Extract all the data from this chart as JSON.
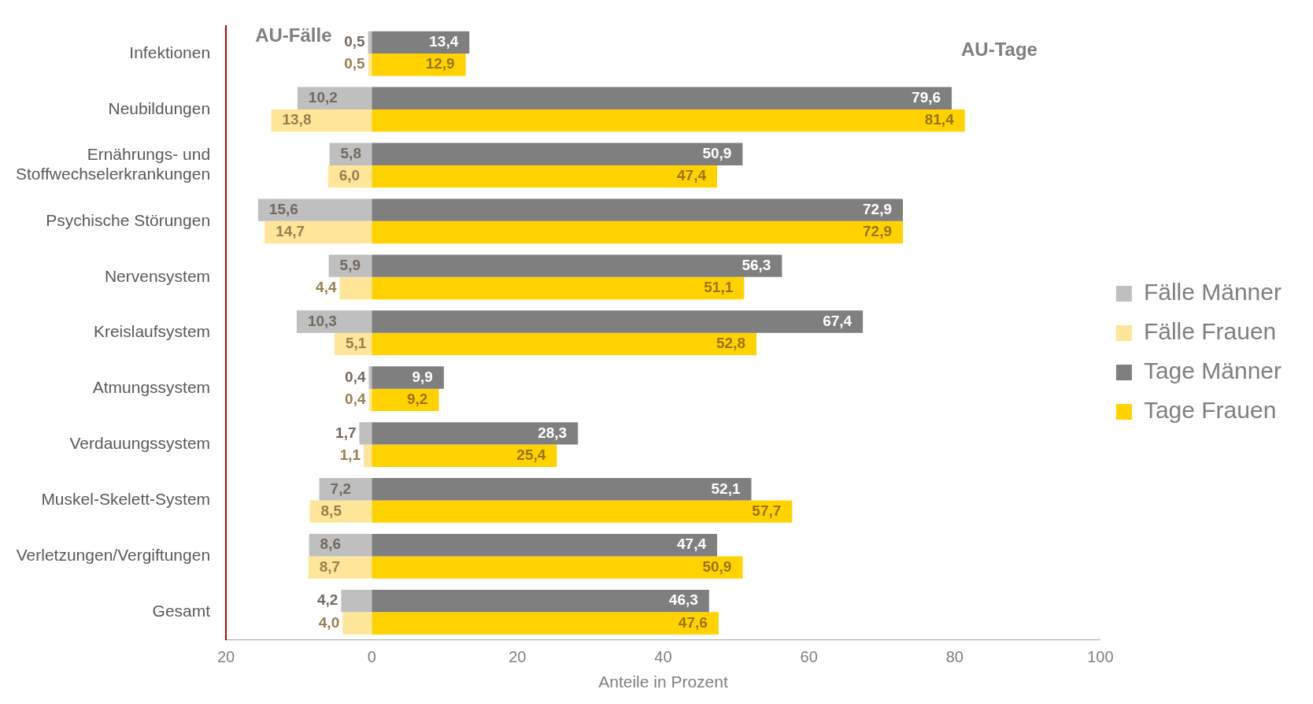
{
  "chart_data": {
    "type": "bar",
    "orientation": "horizontal",
    "xlabel": "Anteile in Prozent",
    "categories": [
      "Infektionen",
      "Neubildungen",
      "Ernährungs- und Stoffwechselerkrankungen",
      "Psychische Störungen",
      "Nervensystem",
      "Kreislaufsystem",
      "Atmungssystem",
      "Verdauungssystem",
      "Muskel-Skelett-System",
      "Verletzungen/Vergiftungen",
      "Gesamt"
    ],
    "series": [
      {
        "name": "Fälle Männer",
        "color": "#bfbfbf",
        "values": [
          0.5,
          10.2,
          5.8,
          15.6,
          5.9,
          10.3,
          0.4,
          1.7,
          7.2,
          8.6,
          4.2
        ],
        "base": [
          -0.5,
          -10.2,
          -5.8,
          -15.6,
          -5.9,
          -10.3,
          -0.4,
          -1.7,
          -7.2,
          -8.6,
          -4.2
        ],
        "value_labels": [
          "0,5",
          "10,2",
          "5,8",
          "15,6",
          "5,9",
          "10,3",
          "0,4",
          "1,7",
          "7,2",
          "8,6",
          "4,2"
        ]
      },
      {
        "name": "Fälle Frauen",
        "color": "#ffe699",
        "values": [
          0.5,
          13.8,
          6.0,
          14.7,
          4.4,
          5.1,
          0.4,
          1.1,
          8.5,
          8.7,
          4.0
        ],
        "base": [
          -0.5,
          -13.8,
          -6.0,
          -14.7,
          -4.4,
          -5.1,
          -0.4,
          -1.1,
          -8.5,
          -8.7,
          -4.0
        ],
        "value_labels": [
          "0,5",
          "13,8",
          "6,0",
          "14,7",
          "4,4",
          "5,1",
          "0,4",
          "1,1",
          "8,5",
          "8,7",
          "4,0"
        ]
      },
      {
        "name": "Tage Männer",
        "color": "#7f7f7f",
        "values": [
          13.4,
          79.6,
          50.9,
          72.9,
          56.3,
          67.4,
          9.9,
          28.3,
          52.1,
          47.4,
          46.3
        ],
        "value_labels": [
          "13,4",
          "79,6",
          "50,9",
          "72,9",
          "56,3",
          "67,4",
          "9,9",
          "28,3",
          "52,1",
          "47,4",
          "46,3"
        ]
      },
      {
        "name": "Tage Frauen",
        "color": "#ffd200",
        "values": [
          12.9,
          81.4,
          47.4,
          72.9,
          51.1,
          52.8,
          9.2,
          25.4,
          57.7,
          50.9,
          47.6
        ],
        "value_labels": [
          "12,9",
          "81,4",
          "47,4",
          "72,9",
          "51,1",
          "52,8",
          "9,2",
          "25,4",
          "57,7",
          "50,9",
          "47,6"
        ]
      }
    ],
    "xlim": [
      -20,
      100
    ],
    "xticks": [
      {
        "value": -20,
        "label": "20"
      },
      0,
      20,
      40,
      60,
      80,
      100
    ],
    "grid": false,
    "legend": "right",
    "annotations": [
      "AU-Fälle",
      "AU-Tage"
    ]
  }
}
